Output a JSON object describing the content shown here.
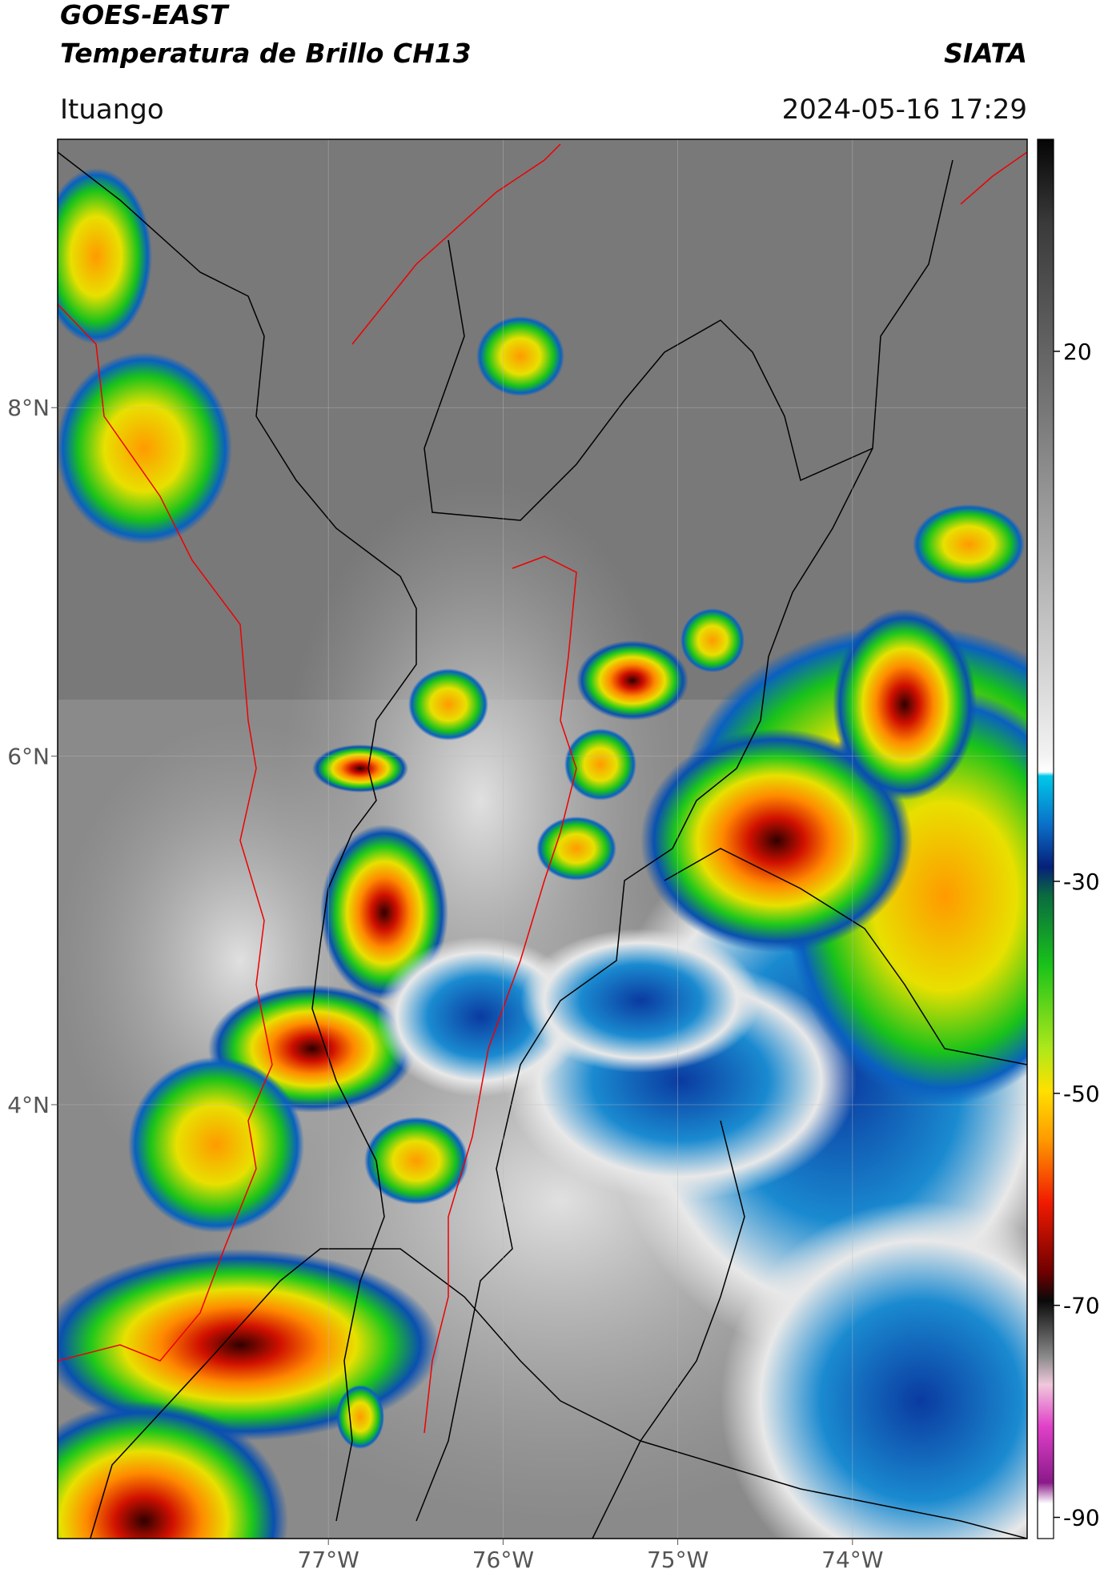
{
  "header": {
    "title": "GOES-EAST",
    "subtitle": "Temperatura de Brillo CH13",
    "brand": "SIATA",
    "location": "Ituango",
    "timestamp": "2024-05-16 17:29"
  },
  "map": {
    "xlim": [
      -78.55,
      -73.0
    ],
    "ylim": [
      1.51,
      9.54
    ],
    "xticks": [
      {
        "value": -77,
        "label": "77°W"
      },
      {
        "value": -76,
        "label": "76°W"
      },
      {
        "value": -75,
        "label": "75°W"
      },
      {
        "value": -74,
        "label": "74°W"
      }
    ],
    "yticks": [
      {
        "value": 8,
        "label": "8°N"
      },
      {
        "value": 6,
        "label": "6°N"
      },
      {
        "value": 4,
        "label": "4°N"
      }
    ]
  },
  "colorbar": {
    "lim": [
      -92,
      40
    ],
    "ticks": [
      20,
      -30,
      -50,
      -70,
      -90
    ]
  }
}
